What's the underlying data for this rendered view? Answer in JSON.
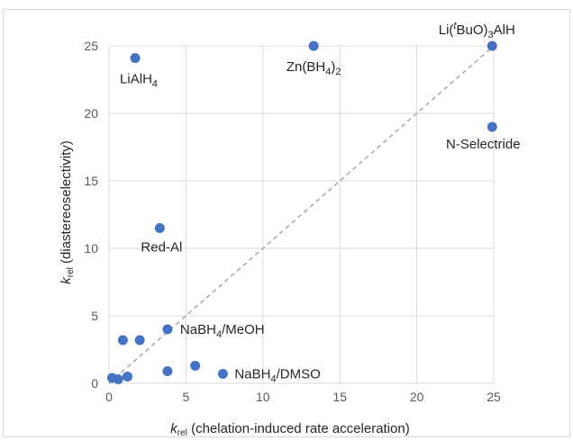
{
  "chart_data": {
    "type": "scatter",
    "xlabel": {
      "var": "k",
      "sub": "rel",
      "text": " (chelation-induced rate acceleration)"
    },
    "ylabel": {
      "var": "k",
      "sub": "rel",
      "text": " (diastereoselectivity)"
    },
    "xlim": [
      0,
      25
    ],
    "ylim": [
      0,
      25
    ],
    "xticks": [
      "0",
      "5",
      "10",
      "15",
      "20",
      "25"
    ],
    "yticks": [
      "0",
      "5",
      "10",
      "15",
      "20",
      "25"
    ],
    "grid": true,
    "diagonal": "dashed y = x reference line",
    "marker_color": "#4472c4",
    "points": [
      {
        "x": 1.7,
        "y": 24.1,
        "label": "LiAlH4"
      },
      {
        "x": 13.3,
        "y": 25.0,
        "label": "Zn(BH4)2"
      },
      {
        "x": 24.9,
        "y": 25.0,
        "label": "Li(tBuO)3AlH"
      },
      {
        "x": 24.9,
        "y": 19.0,
        "label": "N-Selectride"
      },
      {
        "x": 3.3,
        "y": 11.5,
        "label": "Red-Al"
      },
      {
        "x": 3.8,
        "y": 4.0,
        "label": "NaBH4/MeOH"
      },
      {
        "x": 7.4,
        "y": 0.7,
        "label": "NaBH4/DMSO"
      },
      {
        "x": 0.9,
        "y": 3.2,
        "label": ""
      },
      {
        "x": 2.0,
        "y": 3.2,
        "label": ""
      },
      {
        "x": 0.2,
        "y": 0.4,
        "label": ""
      },
      {
        "x": 0.6,
        "y": 0.3,
        "label": ""
      },
      {
        "x": 1.2,
        "y": 0.5,
        "label": ""
      },
      {
        "x": 3.8,
        "y": 0.9,
        "label": ""
      },
      {
        "x": 5.6,
        "y": 1.3,
        "label": ""
      }
    ]
  }
}
